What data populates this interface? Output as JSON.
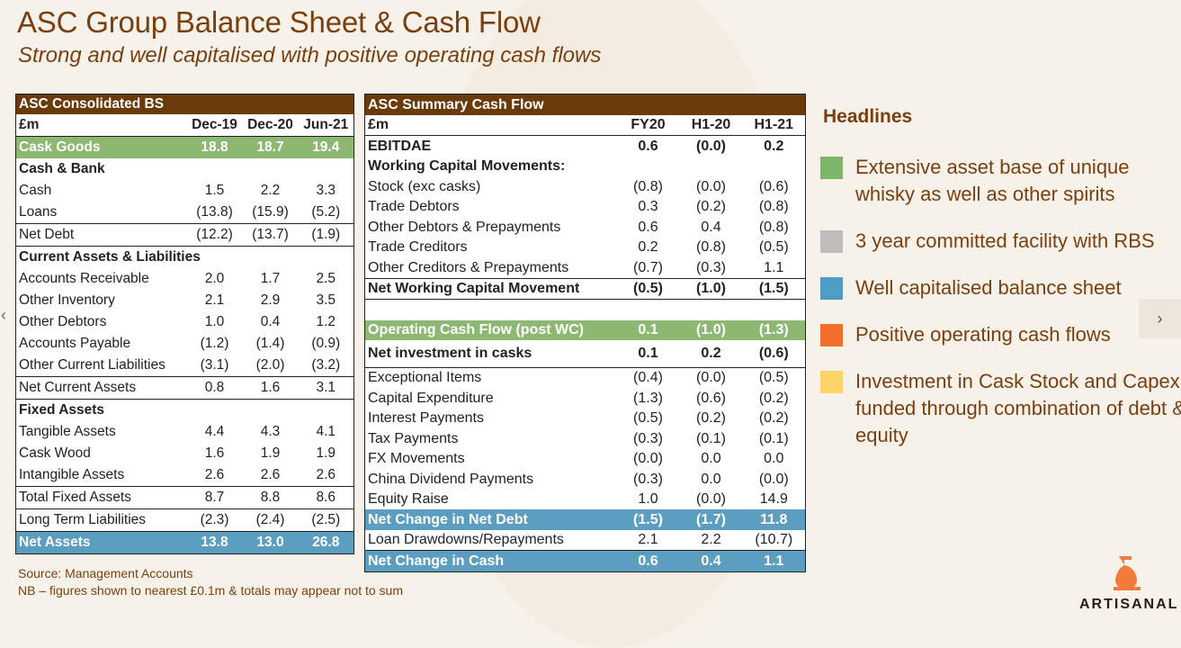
{
  "title": "ASC Group Balance Sheet & Cash Flow",
  "subtitle": "Strong and well capitalised with positive operating cash flows",
  "balance_sheet": {
    "header": "ASC Consolidated BS",
    "units": "£m",
    "columns": [
      "Dec-19",
      "Dec-20",
      "Jun-21"
    ],
    "cask_goods": {
      "label": "Cask Goods",
      "values": [
        "18.8",
        "18.7",
        "19.4"
      ]
    },
    "cash_bank_label": "Cash & Bank",
    "cash": {
      "label": "Cash",
      "values": [
        "1.5",
        "2.2",
        "3.3"
      ]
    },
    "loans": {
      "label": "Loans",
      "values": [
        "(13.8)",
        "(15.9)",
        "(5.2)"
      ]
    },
    "net_debt": {
      "label": "Net Debt",
      "values": [
        "(12.2)",
        "(13.7)",
        "(1.9)"
      ]
    },
    "current_label": "Current Assets & Liabilities",
    "accounts_receivable": {
      "label": "Accounts Receivable",
      "values": [
        "2.0",
        "1.7",
        "2.5"
      ]
    },
    "other_inventory": {
      "label": "Other Inventory",
      "values": [
        "2.1",
        "2.9",
        "3.5"
      ]
    },
    "other_debtors": {
      "label": "Other Debtors",
      "values": [
        "1.0",
        "0.4",
        "1.2"
      ]
    },
    "accounts_payable": {
      "label": "Accounts Payable",
      "values": [
        "(1.2)",
        "(1.4)",
        "(0.9)"
      ]
    },
    "other_current_liabilities": {
      "label": "Other Current Liabilities",
      "values": [
        "(3.1)",
        "(2.0)",
        "(3.2)"
      ]
    },
    "net_current_assets": {
      "label": "Net Current Assets",
      "values": [
        "0.8",
        "1.6",
        "3.1"
      ]
    },
    "fixed_label": "Fixed Assets",
    "tangible_assets": {
      "label": "Tangible Assets",
      "values": [
        "4.4",
        "4.3",
        "4.1"
      ]
    },
    "cask_wood": {
      "label": "Cask Wood",
      "values": [
        "1.6",
        "1.9",
        "1.9"
      ]
    },
    "intangible_assets": {
      "label": "Intangible Assets",
      "values": [
        "2.6",
        "2.6",
        "2.6"
      ]
    },
    "total_fixed_assets": {
      "label": "Total Fixed Assets",
      "values": [
        "8.7",
        "8.8",
        "8.6"
      ]
    },
    "long_term_liabilities": {
      "label": "Long Term Liabilities",
      "values": [
        "(2.3)",
        "(2.4)",
        "(2.5)"
      ]
    },
    "net_assets": {
      "label": "Net Assets",
      "values": [
        "13.8",
        "13.0",
        "26.8"
      ]
    }
  },
  "cash_flow": {
    "header": "ASC Summary Cash Flow",
    "units": "£m",
    "columns": [
      "FY20",
      "H1-20",
      "H1-21"
    ],
    "ebitdae": {
      "label": "EBITDAE",
      "values": [
        "0.6",
        "(0.0)",
        "0.2"
      ]
    },
    "wc_label": "Working Capital Movements:",
    "stock": {
      "label": "Stock (exc casks)",
      "values": [
        "(0.8)",
        "(0.0)",
        "(0.6)"
      ]
    },
    "trade_debtors": {
      "label": "Trade Debtors",
      "values": [
        "0.3",
        "(0.2)",
        "(0.8)"
      ]
    },
    "other_debtors": {
      "label": "Other Debtors & Prepayments",
      "values": [
        "0.6",
        "0.4",
        "(0.8)"
      ]
    },
    "trade_creditors": {
      "label": "Trade Creditors",
      "values": [
        "0.2",
        "(0.8)",
        "(0.5)"
      ]
    },
    "other_creditors": {
      "label": "Other Creditors & Prepayments",
      "values": [
        "(0.7)",
        "(0.3)",
        "1.1"
      ]
    },
    "net_wc": {
      "label": "Net Working Capital Movement",
      "values": [
        "(0.5)",
        "(1.0)",
        "(1.5)"
      ]
    },
    "operating_cf": {
      "label": "Operating Cash Flow (post WC)",
      "values": [
        "0.1",
        "(1.0)",
        "(1.3)"
      ]
    },
    "net_investment": {
      "label": "Net investment in casks",
      "values": [
        "0.1",
        "0.2",
        "(0.6)"
      ]
    },
    "exceptional": {
      "label": "Exceptional Items",
      "values": [
        "(0.4)",
        "(0.0)",
        "(0.5)"
      ]
    },
    "capex": {
      "label": "Capital Expenditure",
      "values": [
        "(1.3)",
        "(0.6)",
        "(0.2)"
      ]
    },
    "interest": {
      "label": "Interest Payments",
      "values": [
        "(0.5)",
        "(0.2)",
        "(0.2)"
      ]
    },
    "tax": {
      "label": "Tax Payments",
      "values": [
        "(0.3)",
        "(0.1)",
        "(0.1)"
      ]
    },
    "fx": {
      "label": "FX Movements",
      "values": [
        "(0.0)",
        "0.0",
        "0.0"
      ]
    },
    "china_dividend": {
      "label": "China Dividend Payments",
      "values": [
        "(0.3)",
        "0.0",
        "(0.0)"
      ]
    },
    "equity_raise": {
      "label": "Equity Raise",
      "values": [
        "1.0",
        "(0.0)",
        "14.9"
      ]
    },
    "net_change_debt": {
      "label": "Net Change in Net Debt",
      "values": [
        "(1.5)",
        "(1.7)",
        "11.8"
      ]
    },
    "loan_drawdowns": {
      "label": "Loan Drawdowns/Repayments",
      "values": [
        "2.1",
        "2.2",
        "(10.7)"
      ]
    },
    "net_change_cash": {
      "label": "Net Change in Cash",
      "values": [
        "0.6",
        "0.4",
        "1.1"
      ]
    }
  },
  "headlines": {
    "title": "Headlines",
    "items": [
      {
        "text": "Extensive asset base of unique whisky as well as other spirits",
        "color": "#7db56a"
      },
      {
        "text": "3 year committed facility with RBS",
        "color": "#bdbdbd"
      },
      {
        "text": "Well capitalised balance sheet",
        "color": "#4d9cc3"
      },
      {
        "text": "Positive operating cash flows",
        "color": "#f26e2b"
      },
      {
        "text": "Investment in Cask Stock and Capex funded through combination of debt & equity",
        "color": "#fbd465"
      }
    ]
  },
  "footer": {
    "source": "Source: Management Accounts",
    "note": "NB – figures shown to nearest £0.1m & totals may appear not to sum"
  },
  "nav": {
    "prev": "‹",
    "next": "›"
  },
  "logo": {
    "text": "ARTISANAL"
  },
  "colors": {
    "brand_brown": "#6b3a0a",
    "green": "#8db872",
    "blue": "#5b9ebf"
  }
}
